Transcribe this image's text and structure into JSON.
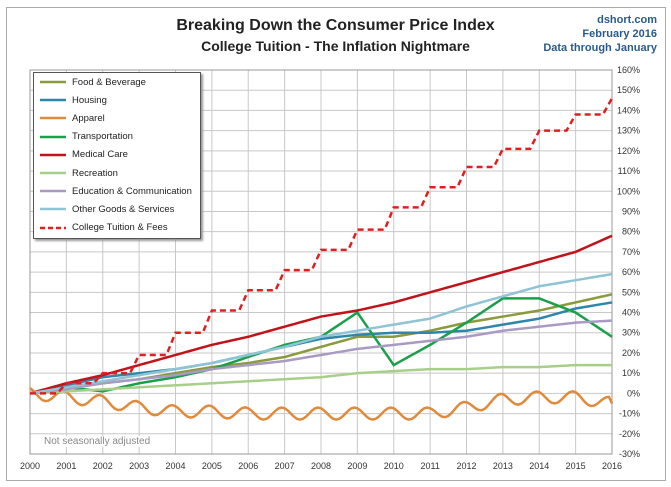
{
  "header": {
    "title": "Breaking Down the Consumer Price Index",
    "subtitle": "College Tuition - The Inflation Nightmare",
    "source": "dshort.com",
    "date": "February 2016",
    "data_note": "Data through January"
  },
  "chart_data": {
    "type": "line",
    "title": "Breaking Down the Consumer Price Index",
    "subtitle": "College Tuition - The Inflation Nightmare",
    "note": "Not seasonally adjusted",
    "x": [
      2000,
      2001,
      2002,
      2003,
      2004,
      2005,
      2006,
      2007,
      2008,
      2009,
      2010,
      2011,
      2012,
      2013,
      2014,
      2015,
      2016
    ],
    "xlim": [
      2000,
      2016
    ],
    "ylim": [
      -30,
      160
    ],
    "ytick_step": 10,
    "ylabel_side": "right",
    "grid": true,
    "legend_placement": "top-left",
    "series": [
      {
        "name": "Food & Beverage",
        "color": "#8a9a3c",
        "values": [
          0,
          3,
          5,
          7,
          10,
          13,
          15,
          18,
          23,
          28,
          28,
          31,
          35,
          38,
          41,
          45,
          49
        ]
      },
      {
        "name": "Housing",
        "color": "#2e86ab",
        "values": [
          0,
          4,
          8,
          10,
          12,
          15,
          19,
          23,
          27,
          29,
          30,
          30,
          31,
          34,
          37,
          42,
          45
        ]
      },
      {
        "name": "Apparel",
        "color": "#e08a3c",
        "values": [
          0,
          -2,
          -4,
          -7,
          -9,
          -9,
          -10,
          -10,
          -10,
          -10,
          -10,
          -10,
          -7,
          -3,
          -2,
          -2,
          -5
        ],
        "seasonal_amplitude": 3
      },
      {
        "name": "Transportation",
        "color": "#1aa04a",
        "values": [
          0,
          3,
          1,
          5,
          8,
          12,
          18,
          24,
          28,
          40,
          14,
          24,
          35,
          47,
          47,
          40,
          28
        ]
      },
      {
        "name": "Medical Care",
        "color": "#c0141a",
        "values": [
          0,
          5,
          9,
          14,
          19,
          24,
          28,
          33,
          38,
          41,
          45,
          50,
          55,
          60,
          65,
          70,
          78
        ]
      },
      {
        "name": "Recreation",
        "color": "#a8cf8a",
        "values": [
          0,
          1,
          2,
          3,
          4,
          5,
          6,
          7,
          8,
          10,
          11,
          12,
          12,
          13,
          13,
          14,
          14
        ]
      },
      {
        "name": "Education & Communication",
        "color": "#a99ac4",
        "values": [
          0,
          2,
          5,
          7,
          9,
          12,
          14,
          16,
          19,
          22,
          24,
          26,
          28,
          31,
          33,
          35,
          36
        ]
      },
      {
        "name": "Other Goods & Services",
        "color": "#8fc3d6",
        "values": [
          0,
          3,
          6,
          9,
          12,
          15,
          19,
          23,
          28,
          31,
          34,
          37,
          43,
          48,
          53,
          56,
          59
        ]
      },
      {
        "name": "College Tuition & Fees",
        "color": "#e02020",
        "dashed": true,
        "step": true,
        "values": [
          0,
          5,
          10,
          19,
          30,
          41,
          51,
          61,
          71,
          81,
          92,
          102,
          112,
          121,
          130,
          138,
          146
        ]
      }
    ]
  }
}
